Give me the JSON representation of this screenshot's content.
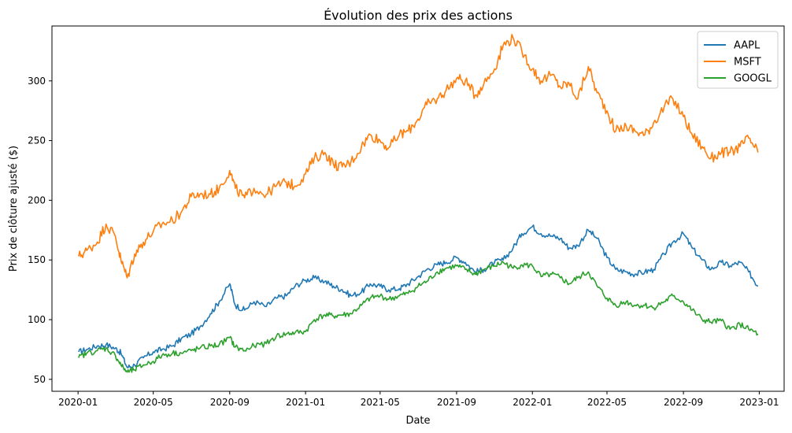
{
  "chart_data": {
    "type": "line",
    "title": "Évolution des prix des actions",
    "xlabel": "Date",
    "ylabel": "Prix de clôture ajusté ($)",
    "xlim": [
      "2019-11-20",
      "2023-02-10"
    ],
    "ylim": [
      40,
      346
    ],
    "x_ticks": [
      "2020-01",
      "2020-05",
      "2020-09",
      "2021-01",
      "2021-05",
      "2021-09",
      "2022-01",
      "2022-05",
      "2022-09",
      "2023-01"
    ],
    "y_ticks": [
      50,
      100,
      150,
      200,
      250,
      300
    ],
    "grid": false,
    "legend": {
      "position": "top-right",
      "entries": [
        "AAPL",
        "MSFT",
        "GOOGL"
      ]
    },
    "x": [
      "2020-01-02",
      "2020-01-15",
      "2020-02-01",
      "2020-02-15",
      "2020-03-01",
      "2020-03-10",
      "2020-03-20",
      "2020-04-01",
      "2020-04-15",
      "2020-05-01",
      "2020-05-15",
      "2020-06-01",
      "2020-06-15",
      "2020-07-01",
      "2020-07-15",
      "2020-08-01",
      "2020-08-15",
      "2020-09-01",
      "2020-09-10",
      "2020-09-25",
      "2020-10-10",
      "2020-10-30",
      "2020-11-15",
      "2020-12-01",
      "2020-12-15",
      "2021-01-01",
      "2021-01-15",
      "2021-02-01",
      "2021-02-15",
      "2021-03-01",
      "2021-03-15",
      "2021-04-01",
      "2021-04-15",
      "2021-05-01",
      "2021-05-15",
      "2021-06-01",
      "2021-06-15",
      "2021-07-01",
      "2021-07-15",
      "2021-08-01",
      "2021-08-15",
      "2021-09-01",
      "2021-09-15",
      "2021-10-01",
      "2021-10-15",
      "2021-11-01",
      "2021-11-15",
      "2021-12-01",
      "2021-12-15",
      "2022-01-01",
      "2022-01-15",
      "2022-02-01",
      "2022-02-15",
      "2022-03-01",
      "2022-03-15",
      "2022-04-01",
      "2022-04-15",
      "2022-05-01",
      "2022-05-15",
      "2022-06-01",
      "2022-06-15",
      "2022-07-01",
      "2022-07-15",
      "2022-08-01",
      "2022-08-15",
      "2022-09-01",
      "2022-09-15",
      "2022-10-01",
      "2022-10-15",
      "2022-11-01",
      "2022-11-15",
      "2022-12-01",
      "2022-12-15",
      "2022-12-30"
    ],
    "series": [
      {
        "name": "AAPL",
        "color": "#1f77b4",
        "values": [
          73,
          75,
          78,
          79,
          76,
          72,
          60,
          62,
          68,
          73,
          75,
          78,
          84,
          88,
          94,
          105,
          115,
          130,
          112,
          108,
          115,
          111,
          118,
          120,
          128,
          133,
          135,
          132,
          128,
          125,
          120,
          123,
          130,
          128,
          125,
          126,
          130,
          136,
          142,
          146,
          148,
          152,
          148,
          140,
          142,
          148,
          150,
          160,
          172,
          178,
          172,
          170,
          168,
          160,
          162,
          175,
          168,
          152,
          142,
          140,
          138,
          140,
          142,
          155,
          165,
          172,
          160,
          150,
          142,
          148,
          145,
          148,
          140,
          128
        ]
      },
      {
        "name": "MSFT",
        "color": "#ff7f0e",
        "values": [
          153,
          158,
          165,
          180,
          170,
          150,
          135,
          155,
          165,
          174,
          180,
          183,
          190,
          203,
          205,
          205,
          210,
          225,
          210,
          202,
          210,
          205,
          212,
          215,
          212,
          222,
          235,
          240,
          230,
          228,
          232,
          245,
          255,
          250,
          244,
          255,
          258,
          268,
          280,
          285,
          292,
          302,
          300,
          288,
          298,
          310,
          330,
          336,
          325,
          310,
          300,
          305,
          295,
          298,
          285,
          312,
          290,
          275,
          258,
          262,
          258,
          255,
          265,
          278,
          285,
          270,
          255,
          245,
          235,
          240,
          240,
          245,
          252,
          240
        ]
      },
      {
        "name": "GOOGL",
        "color": "#2ca02c",
        "values": [
          68,
          72,
          74,
          76,
          70,
          62,
          56,
          58,
          62,
          65,
          70,
          72,
          72,
          74,
          76,
          78,
          79,
          85,
          77,
          74,
          78,
          80,
          86,
          88,
          89,
          90,
          100,
          104,
          103,
          104,
          105,
          112,
          118,
          120,
          117,
          120,
          122,
          128,
          132,
          140,
          143,
          145,
          142,
          138,
          142,
          145,
          148,
          143,
          146,
          145,
          136,
          138,
          135,
          130,
          135,
          140,
          128,
          118,
          112,
          115,
          112,
          112,
          110,
          115,
          120,
          115,
          108,
          100,
          98,
          99,
          92,
          96,
          92,
          88
        ]
      }
    ]
  }
}
